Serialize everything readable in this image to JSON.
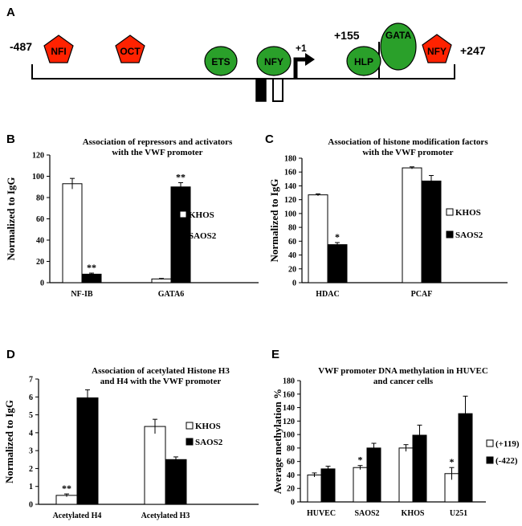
{
  "colors": {
    "repressor": "#ff2200",
    "activator": "#2aa02a",
    "bar_khos": "#ffffff",
    "bar_saos2": "#000000",
    "axis": "#000000"
  },
  "panelA": {
    "letter": "A",
    "left_coord": "-487",
    "right_coord": "+247",
    "tss_label": "+1",
    "hlp_coord": "+155",
    "elements": [
      {
        "label": "NFI",
        "shape": "pentagon",
        "role": "repressor"
      },
      {
        "label": "OCT",
        "shape": "pentagon",
        "role": "repressor"
      },
      {
        "label": "ETS",
        "shape": "ellipse",
        "role": "activator"
      },
      {
        "label": "NFY",
        "shape": "ellipse",
        "role": "activator"
      },
      {
        "label": "HLP",
        "shape": "ellipse",
        "role": "activator"
      },
      {
        "label": "GATA",
        "shape": "ellipse",
        "role": "activator"
      },
      {
        "label": "NFY",
        "shape": "pentagon",
        "role": "repressor"
      }
    ]
  },
  "chart_data": [
    {
      "panel": "B",
      "type": "bar",
      "title": "Association of repressors and activators\nwith the VWF promoter",
      "xlabel": "",
      "ylabel": "Normalized to IgG",
      "ylim": [
        0,
        120
      ],
      "yticks": [
        0,
        20,
        40,
        60,
        80,
        100,
        120
      ],
      "categories": [
        "NF-IB",
        "GATA6"
      ],
      "series": [
        {
          "name": "KHOS",
          "values": [
            93,
            3.5
          ],
          "errors": [
            5,
            0.5
          ]
        },
        {
          "name": "SAOS2",
          "values": [
            8,
            90
          ],
          "errors": [
            1,
            4
          ]
        }
      ],
      "annotations": [
        {
          "category": "NF-IB",
          "series": "SAOS2",
          "text": "**"
        },
        {
          "category": "GATA6",
          "series": "SAOS2",
          "text": "**"
        }
      ]
    },
    {
      "panel": "C",
      "type": "bar",
      "title": "Association of histone modification factors\nwith the VWF promoter",
      "xlabel": "",
      "ylabel": "Normalized to IgG",
      "ylim": [
        0,
        180
      ],
      "yticks": [
        0,
        20,
        40,
        60,
        80,
        100,
        120,
        140,
        160,
        180
      ],
      "categories": [
        "HDAC",
        "PCAF"
      ],
      "series": [
        {
          "name": "KHOS",
          "values": [
            127,
            166
          ],
          "errors": [
            1.5,
            1.5
          ]
        },
        {
          "name": "SAOS2",
          "values": [
            55,
            147
          ],
          "errors": [
            3,
            8
          ]
        }
      ],
      "annotations": [
        {
          "category": "HDAC",
          "series": "SAOS2",
          "text": "*"
        }
      ]
    },
    {
      "panel": "D",
      "type": "bar",
      "title": "Association of acetylated Histone H3\nand H4 with the VWF promoter",
      "xlabel": "",
      "ylabel": "Normalized to IgG",
      "ylim": [
        0,
        7
      ],
      "yticks": [
        0,
        1,
        2,
        3,
        4,
        5,
        6,
        7
      ],
      "categories": [
        "Acetylated H4",
        "Acetylated H3"
      ],
      "series": [
        {
          "name": "KHOS",
          "values": [
            0.5,
            4.35
          ],
          "errors": [
            0.08,
            0.4
          ]
        },
        {
          "name": "SAOS2",
          "values": [
            5.95,
            2.5
          ],
          "errors": [
            0.45,
            0.15
          ]
        }
      ],
      "annotations": [
        {
          "category": "Acetylated H4",
          "series": "KHOS",
          "text": "**"
        }
      ]
    },
    {
      "panel": "E",
      "type": "bar",
      "title": "VWF promoter DNA methylation in HUVEC\nand cancer cells",
      "xlabel": "",
      "ylabel": "Average methylation %",
      "ylim": [
        0,
        180
      ],
      "yticks": [
        0,
        20,
        40,
        60,
        80,
        100,
        120,
        140,
        160,
        180
      ],
      "categories": [
        "HUVEC",
        "SAOS2",
        "KHOS",
        "U251"
      ],
      "series": [
        {
          "name": "(+119)",
          "values": [
            40,
            51,
            80,
            42
          ],
          "errors": [
            3,
            3,
            5,
            9
          ]
        },
        {
          "name": "(-422)",
          "values": [
            49,
            80,
            99,
            131
          ],
          "errors": [
            4,
            7,
            15,
            26
          ]
        }
      ],
      "annotations": [
        {
          "category": "SAOS2",
          "series": "(+119)",
          "text": "*"
        },
        {
          "category": "U251",
          "series": "(+119)",
          "text": "*"
        }
      ]
    }
  ]
}
